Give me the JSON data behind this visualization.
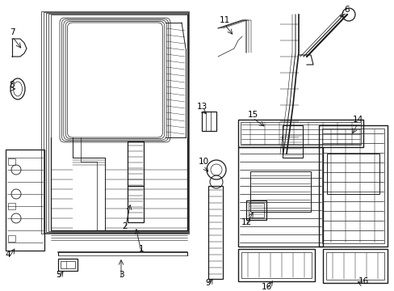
{
  "bg_color": "#ffffff",
  "fig_width": 4.89,
  "fig_height": 3.6,
  "dpi": 100,
  "line_color": "#1a1a1a",
  "text_color": "#000000",
  "label_fontsize": 7.0
}
